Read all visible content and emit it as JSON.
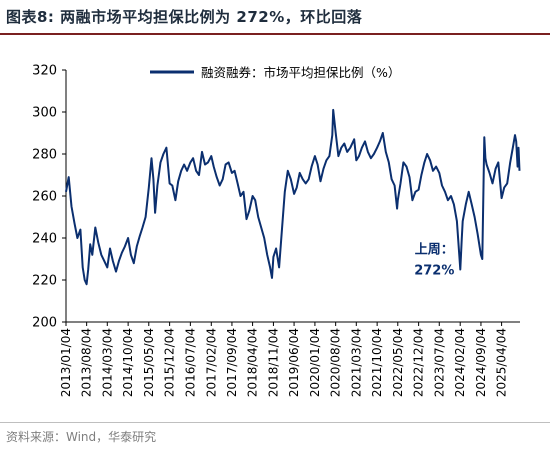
{
  "header": {
    "title": "图表8:   两融市场平均担保比例为 272%，环比回落"
  },
  "footer": {
    "source": "资料来源：Wind，华泰研究"
  },
  "colors": {
    "series": "#0b2f6f",
    "title_rule": "#7a2020",
    "axis": "#000000",
    "source_text": "#7f7f7f"
  },
  "chart_data": {
    "type": "line",
    "title": "",
    "xlabel": "",
    "ylabel": "",
    "ylim": [
      200,
      320
    ],
    "yticks": [
      200,
      220,
      240,
      260,
      280,
      300,
      320
    ],
    "grid": false,
    "legend_position": "top-center",
    "xticks": [
      "2013/01/04",
      "2013/08/04",
      "2014/03/04",
      "2014/10/04",
      "2015/05/04",
      "2015/12/04",
      "2016/07/04",
      "2017/02/04",
      "2017/09/04",
      "2018/04/04",
      "2018/11/04",
      "2019/06/04",
      "2020/01/04",
      "2020/08/04",
      "2021/03/04",
      "2021/10/04",
      "2022/05/04",
      "2022/12/04",
      "2023/07/04",
      "2024/02/04",
      "2024/09/04",
      "2025/04/04"
    ],
    "series": [
      {
        "name": "融资融券：市场平均担保比例（%）",
        "points": [
          [
            "2013/01/04",
            262
          ],
          [
            "2013/02/01",
            269
          ],
          [
            "2013/03/01",
            255
          ],
          [
            "2013/04/01",
            247
          ],
          [
            "2013/05/01",
            240
          ],
          [
            "2013/06/01",
            244
          ],
          [
            "2013/06/25",
            226
          ],
          [
            "2013/07/15",
            220
          ],
          [
            "2013/08/04",
            218
          ],
          [
            "2013/08/20",
            225
          ],
          [
            "2013/09/10",
            237
          ],
          [
            "2013/10/01",
            232
          ],
          [
            "2013/11/01",
            245
          ],
          [
            "2013/12/01",
            238
          ],
          [
            "2014/01/01",
            232
          ],
          [
            "2014/02/01",
            229
          ],
          [
            "2014/03/04",
            226
          ],
          [
            "2014/04/01",
            235
          ],
          [
            "2014/05/01",
            229
          ],
          [
            "2014/06/01",
            224
          ],
          [
            "2014/07/01",
            229
          ],
          [
            "2014/08/01",
            233
          ],
          [
            "2014/09/01",
            236
          ],
          [
            "2014/10/04",
            240
          ],
          [
            "2014/11/01",
            232
          ],
          [
            "2014/12/01",
            228
          ],
          [
            "2015/01/01",
            236
          ],
          [
            "2015/02/01",
            241
          ],
          [
            "2015/03/01",
            245
          ],
          [
            "2015/04/01",
            250
          ],
          [
            "2015/05/04",
            264
          ],
          [
            "2015/06/01",
            278
          ],
          [
            "2015/06/20",
            268
          ],
          [
            "2015/07/08",
            252
          ],
          [
            "2015/08/01",
            265
          ],
          [
            "2015/09/01",
            276
          ],
          [
            "2015/10/01",
            280
          ],
          [
            "2015/11/01",
            283
          ],
          [
            "2015/12/04",
            266
          ],
          [
            "2016/01/01",
            265
          ],
          [
            "2016/02/01",
            258
          ],
          [
            "2016/03/01",
            267
          ],
          [
            "2016/04/01",
            272
          ],
          [
            "2016/05/01",
            275
          ],
          [
            "2016/06/01",
            272
          ],
          [
            "2016/07/04",
            276
          ],
          [
            "2016/08/01",
            278
          ],
          [
            "2016/09/01",
            272
          ],
          [
            "2016/10/01",
            270
          ],
          [
            "2016/11/01",
            281
          ],
          [
            "2016/12/01",
            275
          ],
          [
            "2017/01/01",
            276
          ],
          [
            "2017/02/04",
            279
          ],
          [
            "2017/03/01",
            274
          ],
          [
            "2017/04/01",
            269
          ],
          [
            "2017/05/01",
            265
          ],
          [
            "2017/06/01",
            268
          ],
          [
            "2017/07/01",
            275
          ],
          [
            "2017/08/01",
            276
          ],
          [
            "2017/09/04",
            271
          ],
          [
            "2017/10/01",
            272
          ],
          [
            "2017/11/01",
            266
          ],
          [
            "2017/12/01",
            260
          ],
          [
            "2018/01/01",
            262
          ],
          [
            "2018/02/01",
            249
          ],
          [
            "2018/03/01",
            253
          ],
          [
            "2018/04/04",
            260
          ],
          [
            "2018/05/01",
            258
          ],
          [
            "2018/06/01",
            250
          ],
          [
            "2018/07/01",
            245
          ],
          [
            "2018/08/01",
            240
          ],
          [
            "2018/09/01",
            232
          ],
          [
            "2018/10/01",
            226
          ],
          [
            "2018/10/20",
            221
          ],
          [
            "2018/11/04",
            231
          ],
          [
            "2018/12/01",
            235
          ],
          [
            "2019/01/01",
            226
          ],
          [
            "2019/02/01",
            245
          ],
          [
            "2019/03/01",
            262
          ],
          [
            "2019/04/01",
            272
          ],
          [
            "2019/05/01",
            268
          ],
          [
            "2019/06/04",
            261
          ],
          [
            "2019/07/01",
            264
          ],
          [
            "2019/08/01",
            271
          ],
          [
            "2019/09/01",
            268
          ],
          [
            "2019/10/01",
            266
          ],
          [
            "2019/11/01",
            268
          ],
          [
            "2019/12/01",
            274
          ],
          [
            "2020/01/04",
            279
          ],
          [
            "2020/02/01",
            275
          ],
          [
            "2020/03/01",
            267
          ],
          [
            "2020/04/01",
            273
          ],
          [
            "2020/05/01",
            277
          ],
          [
            "2020/06/01",
            279
          ],
          [
            "2020/07/01",
            289
          ],
          [
            "2020/07/10",
            301
          ],
          [
            "2020/08/04",
            290
          ],
          [
            "2020/09/01",
            279
          ],
          [
            "2020/10/01",
            283
          ],
          [
            "2020/11/01",
            285
          ],
          [
            "2020/12/01",
            281
          ],
          [
            "2021/01/01",
            283
          ],
          [
            "2021/02/10",
            287
          ],
          [
            "2021/03/04",
            277
          ],
          [
            "2021/04/01",
            279
          ],
          [
            "2021/05/01",
            283
          ],
          [
            "2021/06/01",
            286
          ],
          [
            "2021/07/01",
            281
          ],
          [
            "2021/08/01",
            278
          ],
          [
            "2021/09/01",
            280
          ],
          [
            "2021/10/04",
            283
          ],
          [
            "2021/11/01",
            286
          ],
          [
            "2021/12/01",
            290
          ],
          [
            "2022/01/01",
            281
          ],
          [
            "2022/02/01",
            276
          ],
          [
            "2022/03/01",
            268
          ],
          [
            "2022/04/01",
            265
          ],
          [
            "2022/04/27",
            254
          ],
          [
            "2022/05/04",
            258
          ],
          [
            "2022/06/01",
            266
          ],
          [
            "2022/07/01",
            276
          ],
          [
            "2022/08/01",
            274
          ],
          [
            "2022/09/01",
            269
          ],
          [
            "2022/10/01",
            258
          ],
          [
            "2022/11/01",
            262
          ],
          [
            "2022/12/04",
            263
          ],
          [
            "2023/01/01",
            270
          ],
          [
            "2023/02/01",
            276
          ],
          [
            "2023/03/01",
            280
          ],
          [
            "2023/04/01",
            277
          ],
          [
            "2023/05/01",
            272
          ],
          [
            "2023/06/01",
            274
          ],
          [
            "2023/07/04",
            271
          ],
          [
            "2023/08/01",
            265
          ],
          [
            "2023/09/01",
            262
          ],
          [
            "2023/10/01",
            258
          ],
          [
            "2023/11/01",
            260
          ],
          [
            "2023/12/01",
            256
          ],
          [
            "2024/01/01",
            248
          ],
          [
            "2024/02/05",
            225
          ],
          [
            "2024/02/20",
            240
          ],
          [
            "2024/03/01",
            248
          ],
          [
            "2024/04/01",
            256
          ],
          [
            "2024/05/01",
            262
          ],
          [
            "2024/06/01",
            256
          ],
          [
            "2024/07/01",
            250
          ],
          [
            "2024/08/01",
            242
          ],
          [
            "2024/09/04",
            232
          ],
          [
            "2024/09/18",
            230
          ],
          [
            "2024/10/08",
            288
          ],
          [
            "2024/10/20",
            278
          ],
          [
            "2024/11/01",
            275
          ],
          [
            "2024/12/01",
            271
          ],
          [
            "2025/01/01",
            266
          ],
          [
            "2025/02/01",
            273
          ],
          [
            "2025/03/01",
            276
          ],
          [
            "2025/04/04",
            259
          ],
          [
            "2025/05/01",
            264
          ],
          [
            "2025/06/01",
            266
          ],
          [
            "2025/07/01",
            276
          ],
          [
            "2025/08/01",
            284
          ],
          [
            "2025/08/20",
            289
          ],
          [
            "2025/09/01",
            286
          ],
          [
            "2025/09/15",
            274
          ],
          [
            "2025/09/25",
            283
          ],
          [
            "2025/10/05",
            272
          ]
        ]
      }
    ],
    "annotations": [
      {
        "lines": [
          "上周：",
          "272%"
        ],
        "date": "2024/02/05",
        "value": 225
      }
    ]
  }
}
